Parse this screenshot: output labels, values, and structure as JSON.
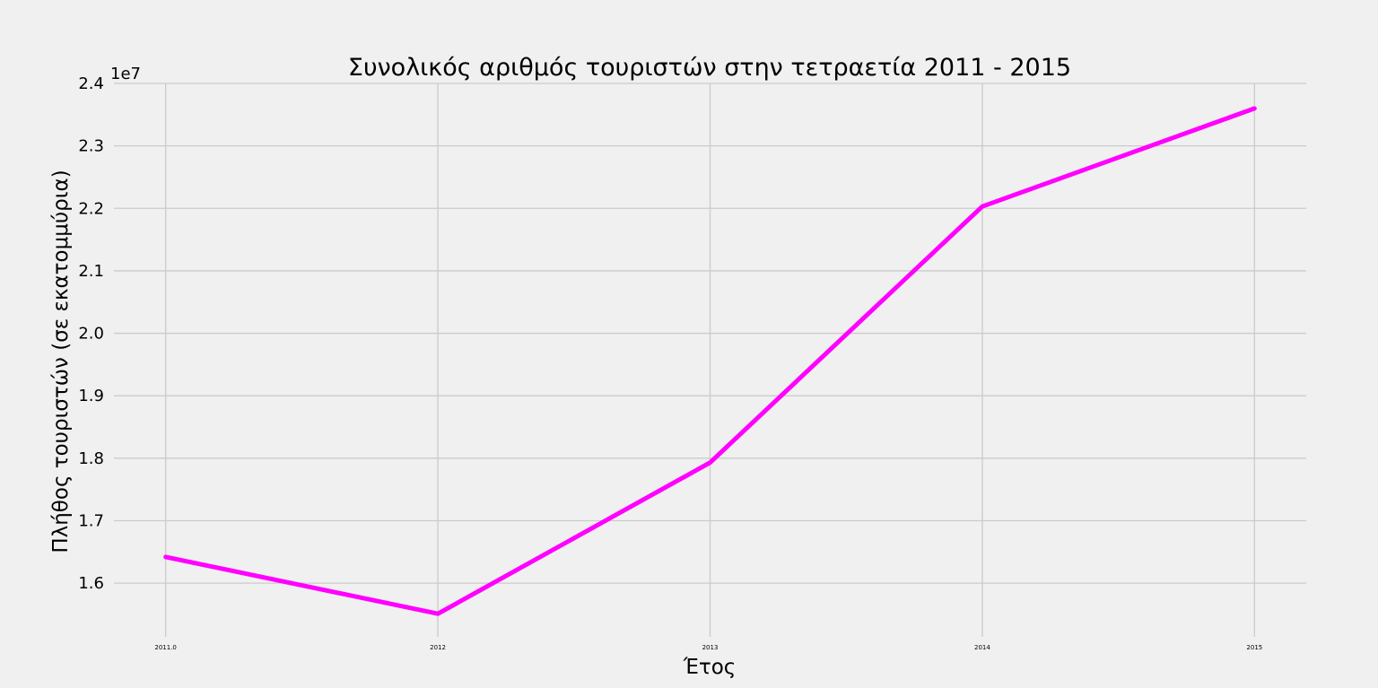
{
  "chart_data": {
    "type": "line",
    "title": "Συνολικός αριθμός τουριστών στην τετραετία 2011 - 2015",
    "xlabel": "Έτος",
    "ylabel": "Πλήθος τουριστών (σε εκατομμύρια)",
    "y_offset_label": "1e7",
    "x": [
      2011,
      2012,
      2013,
      2014,
      2015
    ],
    "x_tick_labels": [
      "2011.0",
      "2012",
      "2013",
      "2014",
      "2015"
    ],
    "series": [
      {
        "values": [
          16420000,
          15510000,
          17930000,
          22030000,
          23600000
        ],
        "color": "#ff00ff"
      }
    ],
    "y_ticks": [
      1.6,
      1.7,
      1.8,
      1.9,
      2.0,
      2.1,
      2.2,
      2.3,
      2.4
    ],
    "y_tick_labels": [
      "1.6",
      "1.7",
      "1.8",
      "1.9",
      "2.0",
      "2.1",
      "2.2",
      "2.3",
      "2.4"
    ],
    "xlim": [
      2010.81,
      2015.19
    ],
    "ylim": [
      15140000,
      24000000
    ],
    "grid": true,
    "background_color": "#f0f0f0",
    "grid_color": "#cbcbcb"
  }
}
